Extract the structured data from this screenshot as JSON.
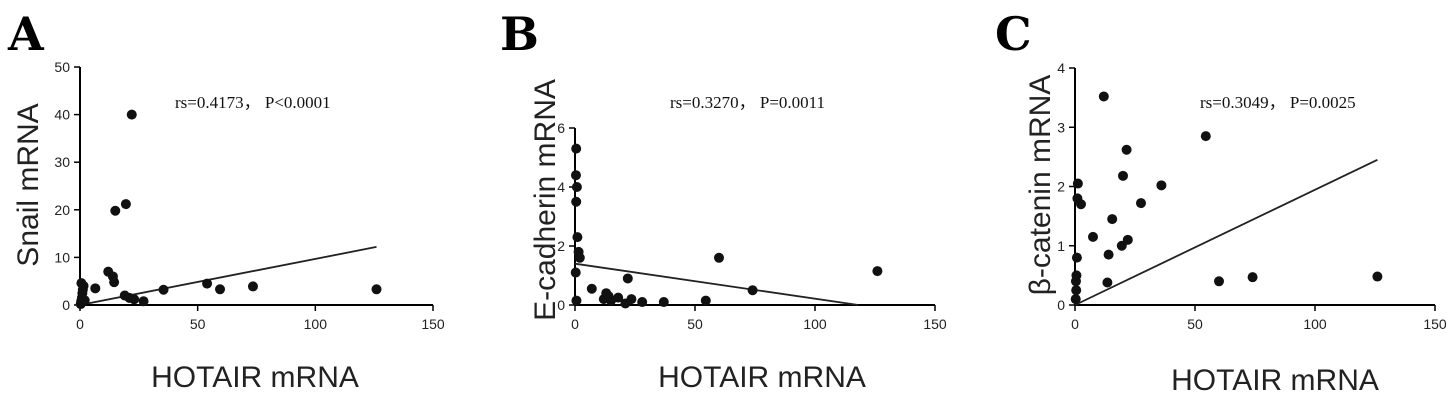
{
  "chart_data": [
    {
      "type": "scatter",
      "panel_label": "A",
      "xlabel": "HOTAIR mRNA",
      "ylabel": "Snail mRNA",
      "xlim": [
        0,
        150
      ],
      "ylim": [
        0,
        50
      ],
      "xticks": [
        0,
        50,
        100,
        150
      ],
      "yticks": [
        0,
        10,
        20,
        30,
        40,
        50
      ],
      "annotation": "rs=0.4173，  P<0.0001",
      "fit_line": {
        "x": [
          0,
          126
        ],
        "y": [
          0,
          12.2
        ]
      },
      "points": [
        {
          "x": 0.3,
          "y": 0.2
        },
        {
          "x": 0.5,
          "y": 0.8
        },
        {
          "x": 0.8,
          "y": 1.5
        },
        {
          "x": 1.0,
          "y": 2.5
        },
        {
          "x": 1.2,
          "y": 3.2
        },
        {
          "x": 1.5,
          "y": 4.0
        },
        {
          "x": 0.6,
          "y": 4.6
        },
        {
          "x": 2.0,
          "y": 1.0
        },
        {
          "x": 6.5,
          "y": 3.5
        },
        {
          "x": 12,
          "y": 7.0
        },
        {
          "x": 14,
          "y": 6.0
        },
        {
          "x": 14.5,
          "y": 4.8
        },
        {
          "x": 15,
          "y": 19.8
        },
        {
          "x": 19.5,
          "y": 21.2
        },
        {
          "x": 22,
          "y": 40.0
        },
        {
          "x": 19,
          "y": 2.0
        },
        {
          "x": 21,
          "y": 1.5
        },
        {
          "x": 23,
          "y": 1.2
        },
        {
          "x": 27,
          "y": 0.8
        },
        {
          "x": 35.5,
          "y": 3.2
        },
        {
          "x": 54,
          "y": 4.5
        },
        {
          "x": 59.5,
          "y": 3.3
        },
        {
          "x": 73.5,
          "y": 3.9
        },
        {
          "x": 126,
          "y": 3.3
        }
      ]
    },
    {
      "type": "scatter",
      "panel_label": "B",
      "xlabel": "HOTAIR mRNA",
      "ylabel": "E-cadherin mRNA",
      "xlim": [
        0,
        150
      ],
      "ylim": [
        0,
        6
      ],
      "xticks": [
        0,
        50,
        100,
        150
      ],
      "yticks": [
        0,
        2,
        4,
        6
      ],
      "annotation": "rs=0.3270，  P=0.0011",
      "fit_line": {
        "x": [
          0,
          118
        ],
        "y": [
          1.4,
          0
        ]
      },
      "points": [
        {
          "x": 0.5,
          "y": 5.3
        },
        {
          "x": 0.4,
          "y": 4.4
        },
        {
          "x": 0.8,
          "y": 4.0
        },
        {
          "x": 0.5,
          "y": 3.5
        },
        {
          "x": 1.0,
          "y": 2.3
        },
        {
          "x": 1.5,
          "y": 1.8
        },
        {
          "x": 2.0,
          "y": 1.6
        },
        {
          "x": 0.3,
          "y": 1.1
        },
        {
          "x": 0.6,
          "y": 0.15
        },
        {
          "x": 7,
          "y": 0.55
        },
        {
          "x": 12,
          "y": 0.2
        },
        {
          "x": 13,
          "y": 0.4
        },
        {
          "x": 14,
          "y": 0.3
        },
        {
          "x": 15,
          "y": 0.15
        },
        {
          "x": 18,
          "y": 0.25
        },
        {
          "x": 21,
          "y": 0.05
        },
        {
          "x": 22,
          "y": 0.9
        },
        {
          "x": 23.5,
          "y": 0.2
        },
        {
          "x": 28,
          "y": 0.1
        },
        {
          "x": 37,
          "y": 0.1
        },
        {
          "x": 54.5,
          "y": 0.15
        },
        {
          "x": 60,
          "y": 1.6
        },
        {
          "x": 74,
          "y": 0.5
        },
        {
          "x": 126,
          "y": 1.15
        }
      ]
    },
    {
      "type": "scatter",
      "panel_label": "C",
      "xlabel": "HOTAIR mRNA",
      "ylabel": "β-catenin mRNA",
      "xlim": [
        0,
        150
      ],
      "ylim": [
        0,
        4
      ],
      "xticks": [
        0,
        50,
        100,
        150
      ],
      "yticks": [
        0,
        1,
        2,
        3,
        4
      ],
      "annotation": "rs=0.3049，  P=0.0025",
      "fit_line": {
        "x": [
          0,
          126
        ],
        "y": [
          0,
          2.45
        ]
      },
      "points": [
        {
          "x": 0.3,
          "y": 0.1
        },
        {
          "x": 0.5,
          "y": 0.25
        },
        {
          "x": 0.4,
          "y": 0.4
        },
        {
          "x": 0.6,
          "y": 0.5
        },
        {
          "x": 0.8,
          "y": 0.8
        },
        {
          "x": 1.0,
          "y": 1.8
        },
        {
          "x": 1.2,
          "y": 2.05
        },
        {
          "x": 2.5,
          "y": 1.7
        },
        {
          "x": 7.5,
          "y": 1.15
        },
        {
          "x": 12,
          "y": 3.52
        },
        {
          "x": 13.5,
          "y": 0.38
        },
        {
          "x": 14,
          "y": 0.85
        },
        {
          "x": 15.5,
          "y": 1.45
        },
        {
          "x": 19.5,
          "y": 1.0
        },
        {
          "x": 20,
          "y": 2.18
        },
        {
          "x": 21.5,
          "y": 2.62
        },
        {
          "x": 22,
          "y": 1.1
        },
        {
          "x": 27.5,
          "y": 1.72
        },
        {
          "x": 36,
          "y": 2.02
        },
        {
          "x": 54.5,
          "y": 2.85
        },
        {
          "x": 60,
          "y": 0.4
        },
        {
          "x": 74,
          "y": 0.47
        },
        {
          "x": 126,
          "y": 0.48
        }
      ]
    }
  ]
}
